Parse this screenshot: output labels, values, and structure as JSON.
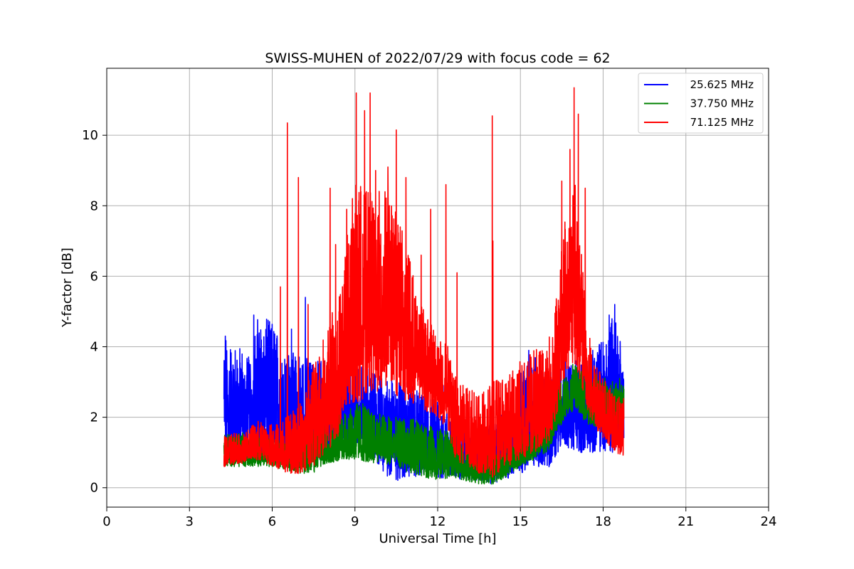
{
  "chart_data": {
    "type": "line",
    "title": "SWISS-MUHEN of 2022/07/29 with focus code = 62",
    "xlabel": "Universal Time [h]",
    "ylabel": "Y-factor [dB]",
    "xlim": [
      0,
      24
    ],
    "ylim": [
      -0.55,
      11.9
    ],
    "xticks": [
      0,
      3,
      6,
      9,
      12,
      15,
      18,
      21,
      24
    ],
    "yticks": [
      0,
      2,
      4,
      6,
      8,
      10
    ],
    "grid": true,
    "legend_position": "top-right",
    "x_start": 4.25,
    "x_end": 18.75,
    "series": [
      {
        "name": "25.625 MHz",
        "color": "#0000ff",
        "envelope": {
          "x": [
            4.25,
            4.8,
            5.2,
            5.5,
            6.0,
            6.5,
            7.0,
            7.5,
            8.0,
            8.5,
            9.0,
            9.5,
            10.0,
            10.5,
            11.0,
            11.5,
            12.0,
            12.5,
            13.0,
            13.5,
            14.0,
            14.5,
            15.0,
            15.5,
            16.0,
            16.5,
            17.0,
            17.5,
            18.0,
            18.4,
            18.75
          ],
          "low": [
            0.8,
            0.9,
            0.9,
            0.8,
            0.8,
            0.6,
            0.6,
            0.7,
            1.0,
            1.2,
            1.3,
            1.0,
            0.4,
            0.2,
            0.2,
            0.3,
            0.2,
            0.3,
            0.2,
            0.2,
            0.1,
            0.2,
            0.4,
            0.6,
            0.5,
            1.2,
            1.0,
            1.0,
            1.0,
            1.0,
            1.2
          ],
          "high": [
            4.3,
            4.0,
            3.8,
            4.9,
            4.7,
            3.9,
            3.8,
            3.6,
            3.7,
            3.5,
            3.4,
            3.5,
            3.2,
            3.0,
            3.0,
            2.6,
            2.5,
            2.0,
            1.8,
            1.6,
            1.9,
            2.3,
            3.3,
            3.8,
            3.2,
            3.6,
            3.6,
            3.8,
            4.3,
            5.2,
            3.6
          ]
        },
        "peaks": [
          [
            4.3,
            4.3
          ],
          [
            5.33,
            4.9
          ],
          [
            5.85,
            4.75
          ],
          [
            6.7,
            4.5
          ],
          [
            7.2,
            5.4
          ],
          [
            9.0,
            4.0
          ],
          [
            12.2,
            2.9
          ],
          [
            15.3,
            3.9
          ],
          [
            16.6,
            3.8
          ],
          [
            17.6,
            3.7
          ],
          [
            18.22,
            4.9
          ],
          [
            18.42,
            5.2
          ]
        ]
      },
      {
        "name": "37.750 MHz",
        "color": "#008000",
        "envelope": {
          "x": [
            4.25,
            5.0,
            6.0,
            7.0,
            7.5,
            8.0,
            8.5,
            9.0,
            9.5,
            10.0,
            10.5,
            11.0,
            11.5,
            12.0,
            12.5,
            13.0,
            13.5,
            14.0,
            14.5,
            15.0,
            15.5,
            16.0,
            16.3,
            16.7,
            17.0,
            17.5,
            18.0,
            18.4,
            18.75
          ],
          "low": [
            0.6,
            0.6,
            0.6,
            0.4,
            0.4,
            0.7,
            0.7,
            0.8,
            0.7,
            0.7,
            0.6,
            0.4,
            0.3,
            0.2,
            0.3,
            0.2,
            0.1,
            0.1,
            0.3,
            0.6,
            0.8,
            1.0,
            1.6,
            2.0,
            2.2,
            1.7,
            1.8,
            1.6,
            1.8
          ],
          "high": [
            1.5,
            1.6,
            1.4,
            1.5,
            1.8,
            2.0,
            2.2,
            2.5,
            2.3,
            2.1,
            2.0,
            2.0,
            1.8,
            1.7,
            1.6,
            1.3,
            1.2,
            1.2,
            1.3,
            1.5,
            1.8,
            2.3,
            2.9,
            3.3,
            3.5,
            3.3,
            3.2,
            3.0,
            2.9
          ]
        },
        "peaks": [
          [
            16.9,
            3.5
          ],
          [
            17.4,
            3.3
          ],
          [
            18.6,
            3.1
          ]
        ]
      },
      {
        "name": "71.125 MHz",
        "color": "#ff0000",
        "envelope": {
          "x": [
            4.25,
            5.0,
            5.5,
            6.0,
            6.5,
            7.0,
            7.5,
            8.0,
            8.5,
            9.0,
            9.5,
            10.0,
            10.5,
            11.0,
            11.5,
            12.0,
            12.4,
            12.6,
            13.0,
            13.5,
            14.0,
            14.5,
            15.0,
            15.5,
            16.0,
            16.3,
            16.6,
            17.0,
            17.3,
            17.6,
            18.0,
            18.4,
            18.75
          ],
          "low": [
            0.6,
            0.7,
            0.8,
            0.6,
            0.4,
            0.4,
            0.6,
            1.0,
            1.6,
            2.4,
            2.6,
            2.8,
            2.6,
            2.4,
            2.2,
            2.0,
            1.6,
            0.8,
            0.6,
            0.4,
            0.3,
            0.6,
            0.8,
            1.0,
            1.2,
            2.0,
            3.0,
            3.4,
            2.6,
            1.8,
            1.4,
            1.0,
            0.9
          ],
          "high": [
            1.5,
            1.6,
            1.9,
            1.8,
            2.0,
            2.4,
            3.6,
            4.5,
            6.0,
            8.8,
            8.4,
            8.6,
            8.0,
            6.5,
            5.0,
            4.3,
            4.0,
            3.2,
            3.0,
            2.6,
            3.0,
            3.2,
            3.6,
            4.0,
            4.2,
            5.4,
            7.5,
            8.8,
            6.0,
            3.6,
            3.2,
            2.6,
            2.6
          ]
        },
        "peaks": [
          [
            6.3,
            5.7
          ],
          [
            6.55,
            10.35
          ],
          [
            6.95,
            8.8
          ],
          [
            7.3,
            5.2
          ],
          [
            8.1,
            8.5
          ],
          [
            8.3,
            6.9
          ],
          [
            8.7,
            7.9
          ],
          [
            9.05,
            11.2
          ],
          [
            9.35,
            10.7
          ],
          [
            9.55,
            11.2
          ],
          [
            9.75,
            9.0
          ],
          [
            10.2,
            9.1
          ],
          [
            10.5,
            10.15
          ],
          [
            10.85,
            8.8
          ],
          [
            11.4,
            6.6
          ],
          [
            11.75,
            7.9
          ],
          [
            12.3,
            8.6
          ],
          [
            12.7,
            6.1
          ],
          [
            13.98,
            10.55
          ],
          [
            14.0,
            7.0
          ],
          [
            16.5,
            8.7
          ],
          [
            16.8,
            9.6
          ],
          [
            16.95,
            11.35
          ],
          [
            17.1,
            10.6
          ],
          [
            17.35,
            8.5
          ]
        ]
      }
    ]
  }
}
